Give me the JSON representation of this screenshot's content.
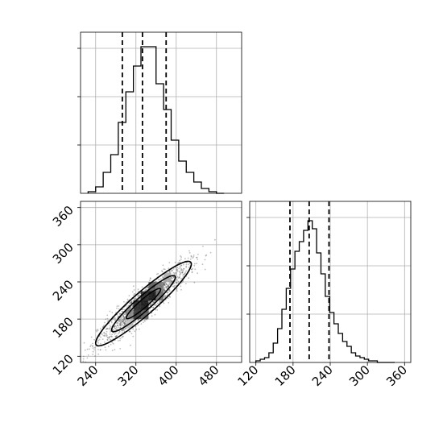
{
  "chart_data": [
    {
      "type": "histogram",
      "panel": "marginal-x",
      "bin_edges": [
        225,
        240,
        255,
        270,
        285,
        300,
        315,
        330,
        345,
        360,
        375,
        390,
        405,
        420,
        435,
        450,
        465,
        480,
        495
      ],
      "values": [
        0.01,
        0.04,
        0.13,
        0.24,
        0.44,
        0.63,
        0.79,
        0.91,
        0.91,
        0.68,
        0.52,
        0.33,
        0.2,
        0.13,
        0.07,
        0.03,
        0.01,
        0
      ],
      "quantiles": [
        293,
        333,
        380
      ],
      "xlim": [
        210,
        530
      ],
      "ylim": [
        0,
        1.0
      ],
      "grid": true
    },
    {
      "type": "histogram",
      "panel": "marginal-y",
      "bin_edges": [
        120,
        127,
        134,
        141,
        148,
        155,
        162,
        169,
        176,
        183,
        190,
        197,
        204,
        211,
        218,
        225,
        232,
        239,
        246,
        253,
        260,
        267,
        274,
        281,
        288,
        295,
        302,
        309,
        316,
        323,
        330,
        337,
        344
      ],
      "values": [
        0.01,
        0.02,
        0.03,
        0.06,
        0.12,
        0.21,
        0.33,
        0.46,
        0.58,
        0.69,
        0.75,
        0.82,
        0.88,
        0.83,
        0.68,
        0.55,
        0.41,
        0.31,
        0.24,
        0.18,
        0.13,
        0.1,
        0.06,
        0.04,
        0.03,
        0.02,
        0.01,
        0.01,
        0,
        0,
        0,
        0
      ],
      "quantiles": [
        175,
        206,
        238
      ],
      "xlim": [
        110,
        370
      ],
      "xticks": [
        "120",
        "180",
        "240",
        "300",
        "360"
      ],
      "grid": true
    },
    {
      "type": "scatter",
      "panel": "joint",
      "description": "2D posterior density with 2D histogram and contour levels",
      "xlim": [
        210,
        530
      ],
      "ylim": [
        110,
        370
      ],
      "xticks": [
        "240",
        "320",
        "400",
        "480"
      ],
      "yticks": [
        "120",
        "180",
        "240",
        "300",
        "360"
      ],
      "center": [
        335,
        205
      ],
      "sd": [
        45,
        32
      ],
      "correlation": 0.92,
      "grid": true
    }
  ]
}
